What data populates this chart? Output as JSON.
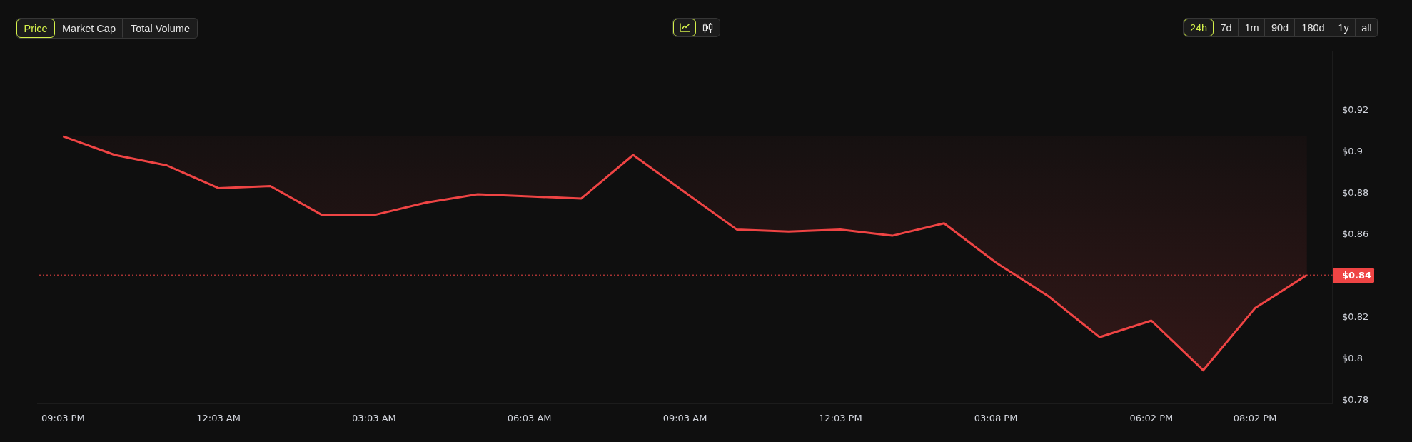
{
  "chart_data": {
    "type": "line",
    "categories": [
      "09:03 PM",
      null,
      null,
      "12:03 AM",
      null,
      null,
      "03:03 AM",
      null,
      null,
      "06:03 AM",
      null,
      null,
      "09:03 AM",
      null,
      null,
      "12:03 PM",
      null,
      null,
      "03:08 PM",
      null,
      null,
      "06:02 PM",
      null,
      "08:02 PM",
      null
    ],
    "series": [
      {
        "color": "#ef4444",
        "values": [
          0.907,
          0.898,
          0.893,
          0.882,
          0.883,
          0.869,
          0.869,
          0.875,
          0.879,
          0.878,
          0.877,
          0.898,
          0.88,
          0.862,
          0.861,
          0.862,
          0.859,
          0.865,
          0.846,
          0.83,
          0.81,
          0.818,
          0.794,
          0.824,
          0.84
        ],
        "lower": [
          0.907,
          0.898,
          0.893,
          0.882,
          0.883,
          0.869,
          0.869,
          0.875,
          0.879,
          0.878,
          0.877,
          0.898,
          0.88,
          0.862,
          0.861,
          0.862,
          0.859,
          0.865,
          0.846,
          0.83,
          0.81,
          0.818,
          0.794,
          0.824,
          0.84
        ],
        "upper": [
          0.907,
          0.907,
          0.907,
          0.907,
          0.907,
          0.907,
          0.907,
          0.907,
          0.907,
          0.907,
          0.907,
          0.907,
          0.907,
          0.907,
          0.907,
          0.907,
          0.907,
          0.907,
          0.907,
          0.907,
          0.907,
          0.907,
          0.907,
          0.907,
          0.907
        ]
      }
    ],
    "ylim": [
      0.778,
      0.948
    ],
    "yticks": [
      {
        "value": 0.78,
        "label": "$0.78"
      },
      {
        "value": 0.8,
        "label": "$0.8"
      },
      {
        "value": 0.82,
        "label": "$0.82"
      },
      {
        "value": 0.86,
        "label": "$0.86"
      },
      {
        "value": 0.88,
        "label": "$0.88"
      },
      {
        "value": 0.9,
        "label": "$0.9"
      },
      {
        "value": 0.92,
        "label": "$0.92"
      }
    ],
    "ref_lines": [
      {
        "axis": "y",
        "value": 0.84,
        "label": "$0.84",
        "color": "#ef4444",
        "line_style": "dotted"
      }
    ],
    "annotations": [
      "Price",
      "Market Cap",
      "Total Volume",
      "24h",
      "7d",
      "1m",
      "90d",
      "180d",
      "1y",
      "all"
    ]
  }
}
